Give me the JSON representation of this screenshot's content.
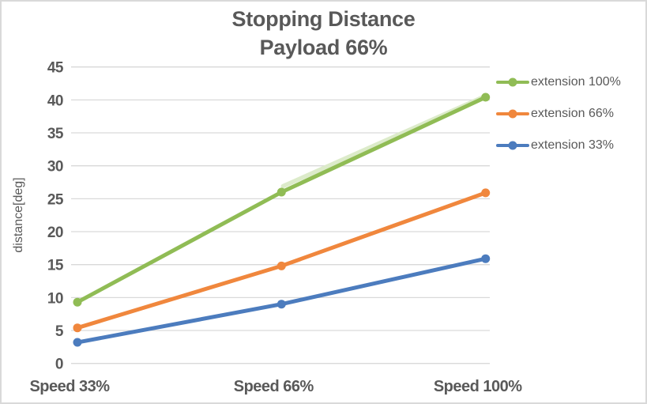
{
  "chart": {
    "title_line1": "Stopping Distance",
    "title_line2": "Payload 66%",
    "ylabel": "distance[deg]"
  },
  "chart_data": {
    "type": "line",
    "title": "Stopping Distance Payload 66%",
    "xlabel": "",
    "ylabel": "distance[deg]",
    "categories": [
      "Speed 33%",
      "Speed 66%",
      "Speed 100%"
    ],
    "series": [
      {
        "name": "extension 100%",
        "color": "#90BC55",
        "values": [
          9.3,
          26.0,
          40.4
        ]
      },
      {
        "name": "extension 66%",
        "color": "#F0873D",
        "values": [
          5.4,
          14.8,
          25.9
        ]
      },
      {
        "name": "extension 33%",
        "color": "#4C7CBE",
        "values": [
          3.2,
          9.0,
          15.9
        ]
      }
    ],
    "highlight_overlay": {
      "description": "pale green band above extension 100% line between Speed 66% and Speed 100%",
      "color": "#DCEBCA",
      "from_value": 26.9,
      "to_value": 40.6
    },
    "ylim": [
      0,
      45
    ],
    "ytick_step": 5,
    "grid": "horizontal",
    "legend_position": "right",
    "colors": {
      "grid": "#D9D9D9",
      "text": "#595959",
      "border": "#D9D9D9",
      "background": "#FFFFFF"
    }
  }
}
